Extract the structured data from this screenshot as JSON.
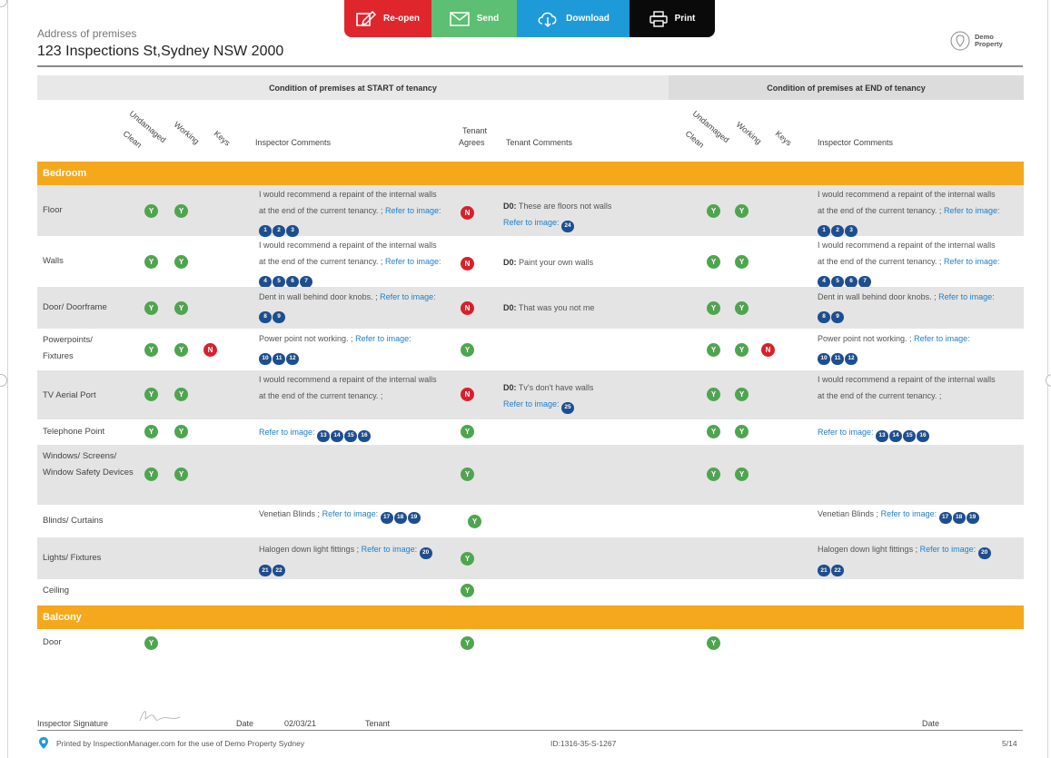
{
  "toolbar": {
    "reopen_label": "Re-open",
    "send_label": "Send",
    "download_label": "Download",
    "print_label": "Print",
    "colors": {
      "reopen": "#e0262d",
      "send": "#5cbf73",
      "download": "#1f9ad8",
      "print": "#0a0a0a"
    }
  },
  "header": {
    "address_label": "Address of premises",
    "address": "123 Inspections St,Sydney NSW 2000",
    "logo_line1": "Demo",
    "logo_line2": "Property"
  },
  "sections": {
    "start": "Condition of premises at START of tenancy",
    "end": "Condition of premises at END of tenancy"
  },
  "columns": {
    "clean": "Clean",
    "undamaged": "Undamaged",
    "working": "Working",
    "keys": "Keys",
    "inspector_comments": "Inspector Comments",
    "tenant_agrees_1": "Tenant",
    "tenant_agrees_2": "Agrees",
    "tenant_comments": "Tenant Comments"
  },
  "badge_text": {
    "yes": "Y",
    "no": "N"
  },
  "link_text": "Refer to image:",
  "groups": [
    "Bedroom",
    "Balcony"
  ],
  "rows": [
    {
      "label": "Floor",
      "start_comment": "I would recommend a repaint of the internal walls at the end of the current tenancy. ;",
      "start_images": [
        "1",
        "2",
        "3"
      ],
      "tenant_agrees": "N",
      "tenant_prefix": "D0:",
      "tenant_comment": "These are floors not walls",
      "tenant_images": [
        "24"
      ],
      "end_comment": "I would recommend a repaint of the internal walls at the end of the current tenancy. ;",
      "end_images": [
        "1",
        "2",
        "3"
      ]
    },
    {
      "label": "Walls",
      "start_comment": "I would recommend a repaint of the internal walls at the end of the current tenancy. ;",
      "start_images": [
        "4",
        "5",
        "6",
        "7"
      ],
      "tenant_agrees": "N",
      "tenant_prefix": "D0:",
      "tenant_comment": "Paint your own walls",
      "end_comment": "I would recommend a repaint of the internal walls at the end of the current tenancy. ;",
      "end_images": [
        "4",
        "5",
        "6",
        "7"
      ]
    },
    {
      "label": "Door/ Doorframe",
      "start_comment": "Dent in wall behind door knobs. ;",
      "start_images": [
        "8",
        "9"
      ],
      "tenant_agrees": "N",
      "tenant_prefix": "D0:",
      "tenant_comment": "That was you not me",
      "end_comment": "Dent in wall behind door knobs. ;",
      "end_images": [
        "8",
        "9"
      ]
    },
    {
      "label": "Powerpoints/ Fixtures",
      "start_comment": "Power point not working. ;",
      "start_images": [
        "10",
        "11",
        "12"
      ],
      "tenant_agrees": "Y",
      "end_comment": "Power point not working. ;",
      "end_images": [
        "10",
        "11",
        "12"
      ]
    },
    {
      "label": "TV Aerial Port",
      "start_comment": "I would recommend a repaint of the internal walls at the end of the current tenancy. ;",
      "tenant_agrees": "N",
      "tenant_prefix": "D0:",
      "tenant_comment": "Tv's don't have walls",
      "tenant_images": [
        "25"
      ],
      "end_comment": "I would recommend a repaint of the internal walls at the end of the current tenancy. ;"
    },
    {
      "label": "Telephone Point",
      "start_images": [
        "13",
        "14",
        "15",
        "16"
      ],
      "tenant_agrees": "Y",
      "end_images": [
        "13",
        "14",
        "15",
        "16"
      ]
    },
    {
      "label": "Windows/ Screens/ Window Safety Devices",
      "tenant_agrees": "Y"
    },
    {
      "label": "Blinds/ Curtains",
      "start_comment": "Venetian Blinds ;",
      "start_images": [
        "17",
        "18",
        "19"
      ],
      "tenant_agrees": "Y",
      "end_comment": "Venetian Blinds ;",
      "end_images": [
        "17",
        "18",
        "19"
      ]
    },
    {
      "label": "Lights/ Fixtures",
      "start_comment": "Halogen down light fittings ;",
      "start_images": [
        "20",
        "21",
        "22"
      ],
      "tenant_agrees": "Y",
      "end_comment": "Halogen down light fittings ;",
      "end_images": [
        "20",
        "21",
        "22"
      ]
    },
    {
      "label": "Ceiling",
      "tenant_agrees": "Y"
    },
    {
      "label": "Door",
      "tenant_agrees": "Y"
    }
  ],
  "footer": {
    "inspector_signature": "Inspector Signature",
    "date_label": "Date",
    "date_value": "02/03/21",
    "tenant_label": "Tenant",
    "date_label_2": "Date",
    "printed_by": "Printed by InspectionManager.com for the use of Demo Property Sydney",
    "doc_id": "ID:1316-35-S-1267",
    "page": "5/14"
  }
}
